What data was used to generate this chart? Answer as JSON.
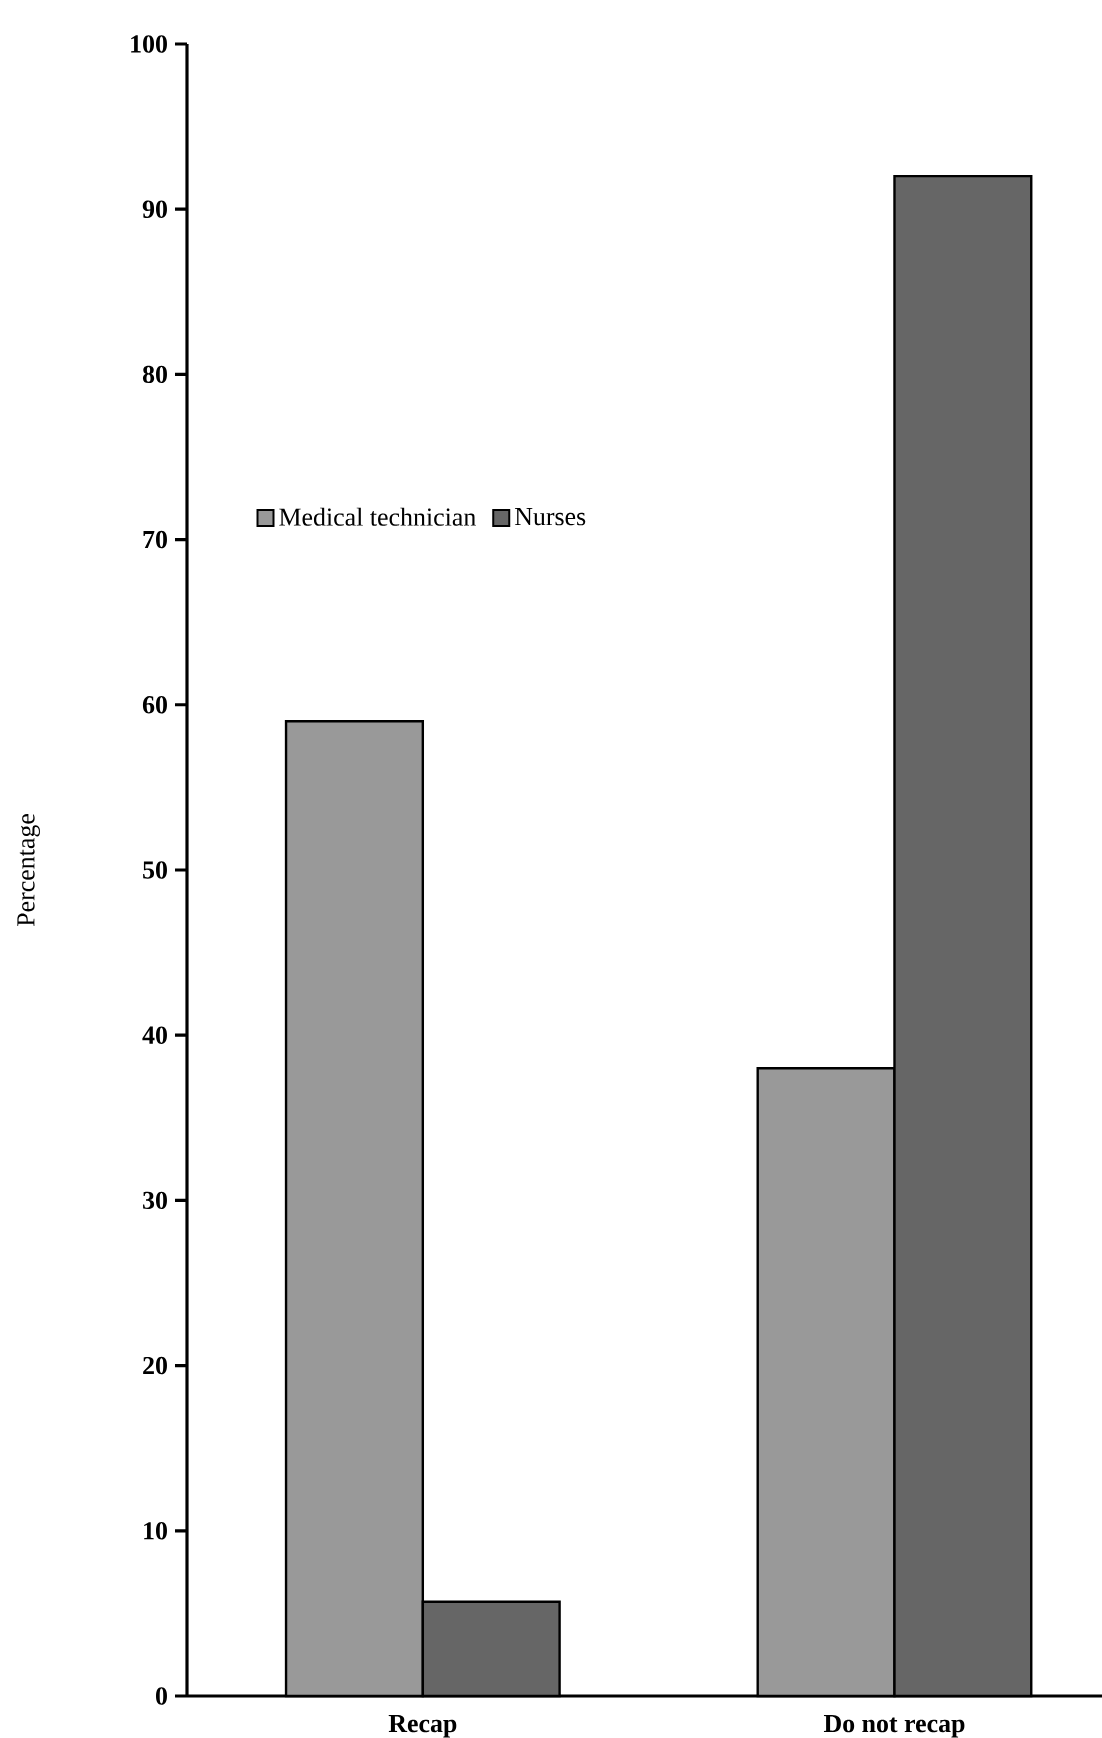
{
  "chart_data": {
    "type": "bar",
    "ylabel": "Percentage",
    "categories": [
      "Recap",
      "Do not recap"
    ],
    "series": [
      {
        "name": "Medical technician",
        "color": "#999999",
        "values": [
          59,
          38
        ]
      },
      {
        "name": "Nurses",
        "color": "#666666",
        "values": [
          5.7,
          92
        ]
      }
    ],
    "ylim": [
      0,
      100
    ],
    "yticks": [
      0,
      10,
      20,
      30,
      40,
      50,
      60,
      70,
      80,
      90,
      100
    ],
    "grid": false,
    "legend": "left"
  }
}
